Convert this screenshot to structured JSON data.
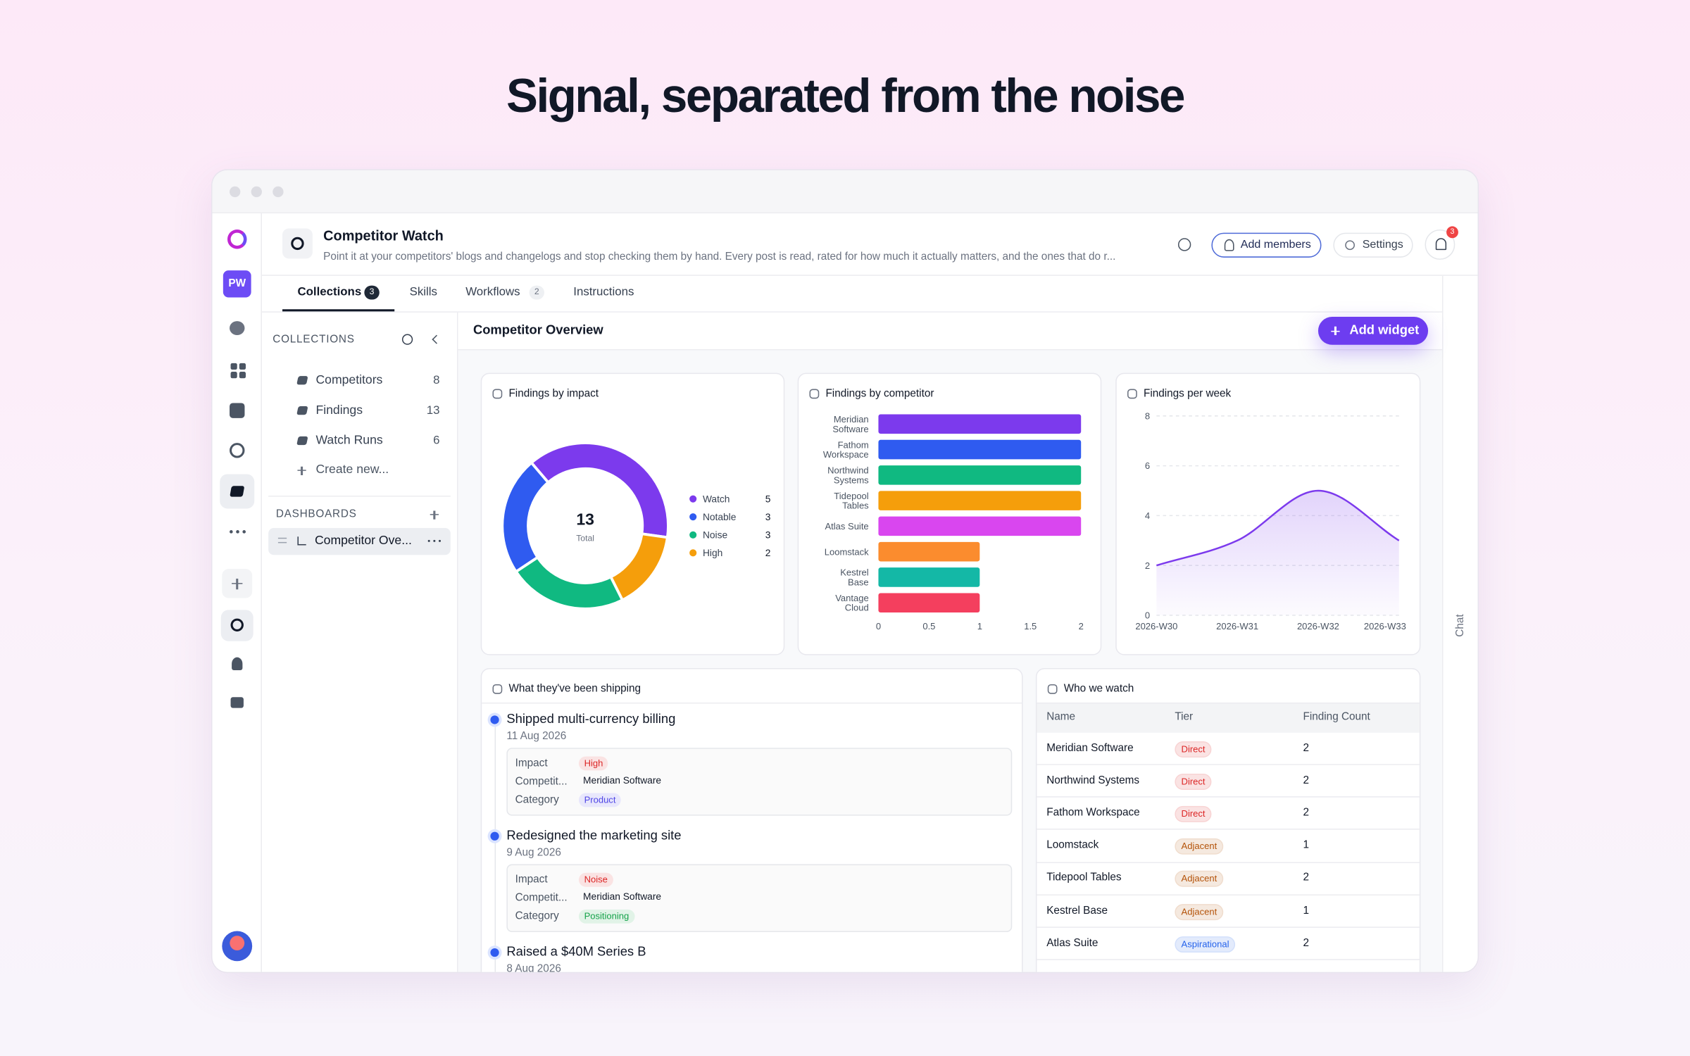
{
  "header": {
    "title": "Signal, separated from the noise"
  },
  "sidebar": {
    "initials": "PW"
  },
  "workspace": {
    "title": "Competitor Watch",
    "description": "Point it at your competitors' blogs and changelogs and stop checking them by hand. Every post is read, rated for how much it actually matters, and the ones that do r...",
    "actions": [
      "Add members",
      "Settings"
    ],
    "notifications": 3
  },
  "tabs": [
    {
      "label": "Collections",
      "count": 3
    },
    {
      "label": "Skills"
    },
    {
      "label": "Workflows",
      "count": 2
    },
    {
      "label": "Instructions"
    }
  ],
  "collections": {
    "heading": "COLLECTIONS",
    "items": [
      {
        "name": "Competitors",
        "count": 8
      },
      {
        "name": "Findings",
        "count": 13
      },
      {
        "name": "Watch Runs",
        "count": 6
      }
    ],
    "create": "Create new..."
  },
  "dashboards": {
    "heading": "DASHBOARDS",
    "items": [
      "Competitor Ove..."
    ]
  },
  "dashboard": {
    "title": "Competitor Overview",
    "action": "Add widget"
  },
  "chart_data": [
    {
      "type": "pie",
      "title": "Findings by impact",
      "categories": [
        "Watch",
        "Notable",
        "Noise",
        "High"
      ],
      "values": [
        5,
        3,
        3,
        2
      ],
      "colors": [
        "#7c3aed",
        "#2f5bf0",
        "#10b981",
        "#f59e0b"
      ],
      "total": 13,
      "total_label": "Total"
    },
    {
      "type": "bar",
      "orientation": "horizontal",
      "title": "Findings by competitor",
      "categories": [
        "Meridian Software",
        "Fathom Workspace",
        "Northwind Systems",
        "Tidepool Tables",
        "Atlas Suite",
        "Loomstack",
        "Kestrel Base",
        "Vantage Cloud"
      ],
      "values": [
        2,
        2,
        2,
        2,
        2,
        1,
        1,
        1
      ],
      "colors": [
        "#7c3aed",
        "#2f5bf0",
        "#10b981",
        "#f59e0b",
        "#d946ef",
        "#fb8c2e",
        "#14b8a6",
        "#f43f5e"
      ],
      "xlim": [
        0,
        2
      ],
      "xticks": [
        0,
        0.5,
        1,
        1.5,
        2
      ],
      "grid": false
    },
    {
      "type": "line",
      "title": "Findings per week",
      "x": [
        "2026-W30",
        "2026-W31",
        "2026-W32",
        "2026-W33"
      ],
      "values": [
        2,
        3,
        5,
        3
      ],
      "color": "#7c3aed",
      "ylim": [
        0,
        8
      ],
      "yticks": [
        0,
        2,
        4,
        6,
        8
      ],
      "grid": true
    }
  ],
  "timeline": {
    "title": "What they've been shipping",
    "fields": [
      "Impact",
      "Competit...",
      "Category"
    ],
    "items": [
      {
        "title": "Shipped multi-currency billing",
        "date": "11 Aug 2026",
        "impact": {
          "text": "High",
          "color": "#dc2626"
        },
        "competitor": "Meridian Software",
        "category": {
          "text": "Product",
          "color": "#4f46e5"
        }
      },
      {
        "title": "Redesigned the marketing site",
        "date": "9 Aug 2026",
        "impact": {
          "text": "Noise",
          "color": "#dc2626"
        },
        "competitor": "Meridian Software",
        "category": {
          "text": "Positioning",
          "color": "#16a34a"
        }
      },
      {
        "title": "Raised a $40M Series B",
        "date": "8 Aug 2026"
      }
    ]
  },
  "table": {
    "title": "Who we watch",
    "columns": [
      "Name",
      "Tier",
      "Finding Count"
    ],
    "rows": [
      {
        "name": "Meridian Software",
        "tier": "Direct",
        "tier_color": "#dc2626",
        "count": 2
      },
      {
        "name": "Northwind Systems",
        "tier": "Direct",
        "tier_color": "#dc2626",
        "count": 2
      },
      {
        "name": "Fathom Workspace",
        "tier": "Direct",
        "tier_color": "#dc2626",
        "count": 2
      },
      {
        "name": "Loomstack",
        "tier": "Adjacent",
        "tier_color": "#b45309",
        "count": 1
      },
      {
        "name": "Tidepool Tables",
        "tier": "Adjacent",
        "tier_color": "#b45309",
        "count": 2
      },
      {
        "name": "Kestrel Base",
        "tier": "Adjacent",
        "tier_color": "#b45309",
        "count": 1
      },
      {
        "name": "Atlas Suite",
        "tier": "Aspirational",
        "tier_color": "#2563eb",
        "count": 2
      }
    ]
  },
  "chat": "Chat"
}
